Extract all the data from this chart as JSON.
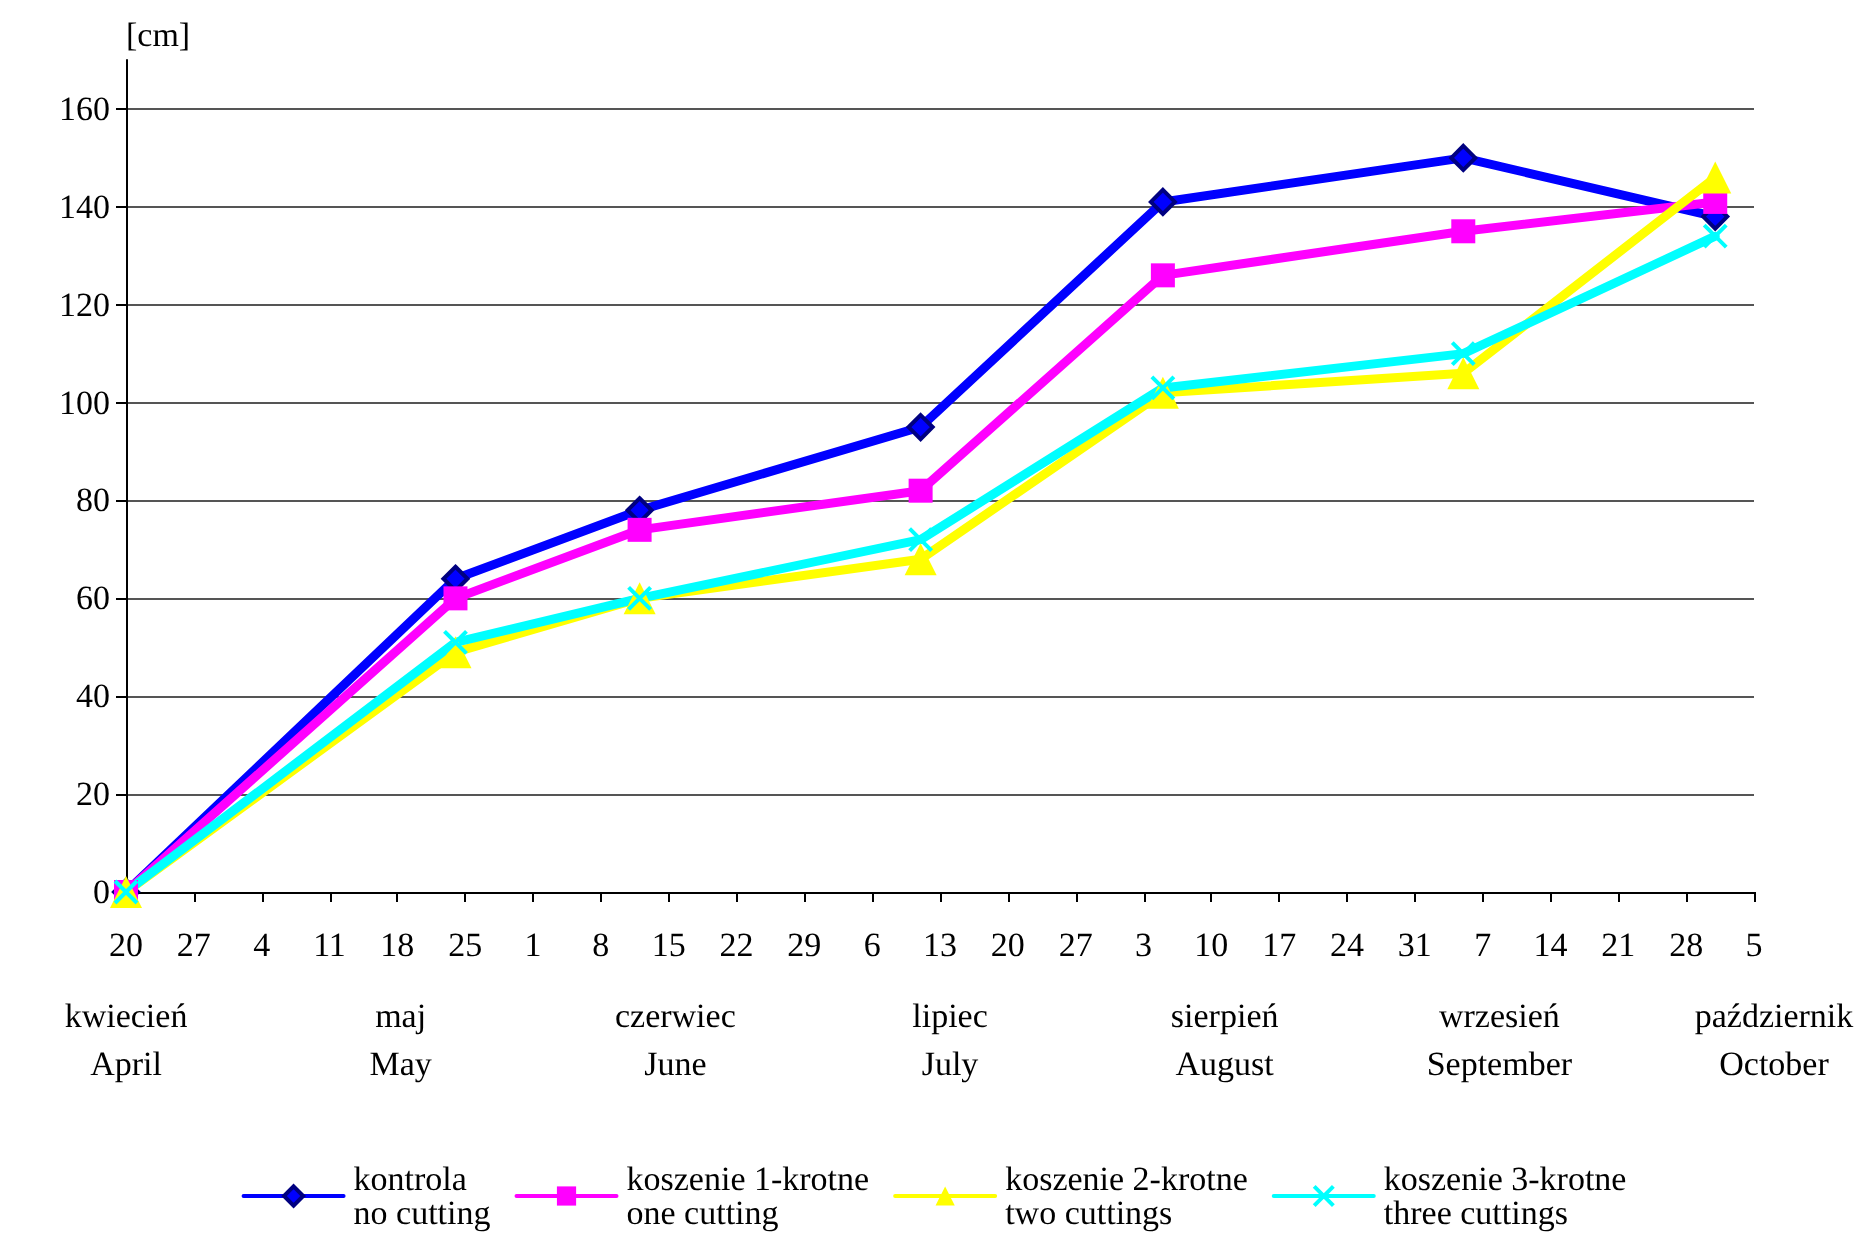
{
  "chart_data": {
    "type": "line",
    "ylabel": "[cm]",
    "x": [
      "--04-20",
      "--05-24",
      "--06-12",
      "--07-11",
      "--08-05",
      "--09-05",
      "--10-01"
    ],
    "series": [
      {
        "name": "kontrola\nno cutting",
        "color": "#0000ff",
        "marker": "diamond",
        "values": [
          0,
          64,
          78,
          95,
          141,
          150,
          138
        ]
      },
      {
        "name": "koszenie 1-krotne\none cutting",
        "color": "#ff00ff",
        "marker": "square",
        "values": [
          0,
          60,
          74,
          82,
          126,
          135,
          141
        ]
      },
      {
        "name": "koszenie 2-krotne\ntwo cuttings",
        "color": "#ffff00",
        "marker": "triangle",
        "values": [
          0,
          49,
          60,
          68,
          102,
          106,
          146
        ]
      },
      {
        "name": "koszenie 3-krotne\nthree cuttings",
        "color": "#00ffff",
        "marker": "cross",
        "values": [
          0,
          51,
          60,
          72,
          103,
          110,
          134
        ]
      }
    ],
    "xlim": [
      "--04-20",
      "--10-05"
    ],
    "xticks": [
      {
        "value": "--04-20",
        "label": "20"
      },
      {
        "value": "--04-27",
        "label": "27"
      },
      {
        "value": "--05-04",
        "label": "4"
      },
      {
        "value": "--05-11",
        "label": "11"
      },
      {
        "value": "--05-18",
        "label": "18"
      },
      {
        "value": "--05-25",
        "label": "25"
      },
      {
        "value": "--06-01",
        "label": "1"
      },
      {
        "value": "--06-08",
        "label": "8"
      },
      {
        "value": "--06-15",
        "label": "15"
      },
      {
        "value": "--06-22",
        "label": "22"
      },
      {
        "value": "--06-29",
        "label": "29"
      },
      {
        "value": "--07-06",
        "label": "6"
      },
      {
        "value": "--07-13",
        "label": "13"
      },
      {
        "value": "--07-20",
        "label": "20"
      },
      {
        "value": "--07-27",
        "label": "27"
      },
      {
        "value": "--08-03",
        "label": "3"
      },
      {
        "value": "--08-10",
        "label": "10"
      },
      {
        "value": "--08-17",
        "label": "17"
      },
      {
        "value": "--08-24",
        "label": "24"
      },
      {
        "value": "--08-31",
        "label": "31"
      },
      {
        "value": "--09-07",
        "label": "7"
      },
      {
        "value": "--09-14",
        "label": "14"
      },
      {
        "value": "--09-21",
        "label": "21"
      },
      {
        "value": "--09-28",
        "label": "28"
      },
      {
        "value": "--10-05",
        "label": "5"
      }
    ],
    "ylim": [
      0,
      170
    ],
    "yticks": [
      0,
      20,
      40,
      60,
      80,
      100,
      120,
      140,
      160
    ],
    "grid": "y",
    "legend": "bottom",
    "line_style": "solid",
    "annotations": [
      "kwiecień\nApril",
      "maj\nMay",
      "czerwiec\nJune",
      "lipiec\nJuly",
      "sierpień\nAugust",
      "wrzesień\nSeptember",
      "październik\nOctober"
    ]
  }
}
